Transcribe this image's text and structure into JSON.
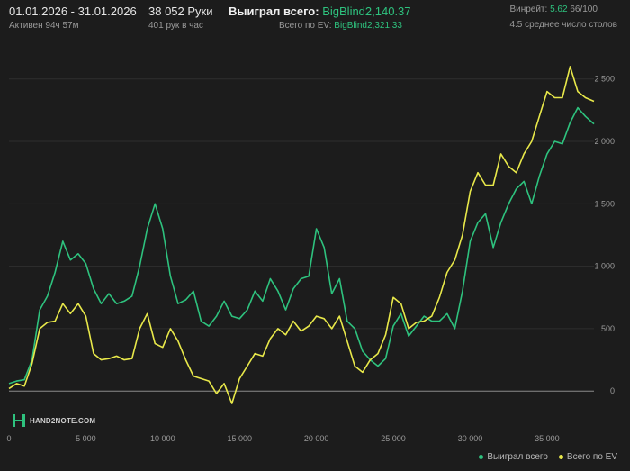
{
  "header": {
    "date_range": "01.01.2026 - 31.01.2026",
    "active_time": "Активен 94ч 57м",
    "hands": "38 052 Руки",
    "hands_per_hour": "401 рук в час",
    "won_label": "Выиграл всего:",
    "won_value": "BigBlind2,140.37",
    "ev_label": "Всего по EV:",
    "ev_value": "BigBlind2,321.33",
    "winrate_label": "Винрейт:",
    "winrate_value": "5.62",
    "winrate_suffix": "66/100",
    "avg_tables": "4.5 среднее число столов"
  },
  "logo": {
    "text": "HAND2NOTE.COM"
  },
  "colors": {
    "won": "#2ec27e",
    "ev": "#e8e84a",
    "background": "#1c1c1c",
    "grid": "#2e2e2e"
  },
  "chart_data": {
    "type": "line",
    "xlim": [
      0,
      38052
    ],
    "ylim": [
      -150,
      2700
    ],
    "x_ticks": [
      0,
      5000,
      10000,
      15000,
      20000,
      25000,
      30000,
      35000
    ],
    "x_tick_labels": [
      "0",
      "5 000",
      "10 000",
      "15 000",
      "20 000",
      "25 000",
      "30 000",
      "35 000"
    ],
    "y_ticks": [
      0,
      500,
      1000,
      1500,
      2000,
      2500
    ],
    "y_tick_labels": [
      "0",
      "500",
      "1 000",
      "1 500",
      "2 000",
      "2 500"
    ],
    "grid": true,
    "legend_position": "bottom-right",
    "series": [
      {
        "name": "Выиграл всего",
        "color": "#2ec27e",
        "x": [
          0,
          500,
          1000,
          1500,
          2000,
          2500,
          3000,
          3500,
          4000,
          4500,
          5000,
          5500,
          6000,
          6500,
          7000,
          7500,
          8000,
          8500,
          9000,
          9500,
          10000,
          10500,
          11000,
          11500,
          12000,
          12500,
          13000,
          13500,
          14000,
          14500,
          15000,
          15500,
          16000,
          16500,
          17000,
          17500,
          18000,
          18500,
          19000,
          19500,
          20000,
          20500,
          21000,
          21500,
          22000,
          22500,
          23000,
          23500,
          24000,
          24500,
          25000,
          25500,
          26000,
          26500,
          27000,
          27500,
          28000,
          28500,
          29000,
          29500,
          30000,
          30500,
          31000,
          31500,
          32000,
          32500,
          33000,
          33500,
          34000,
          34500,
          35000,
          35500,
          36000,
          36500,
          37000,
          37500,
          38052
        ],
        "values": [
          60,
          80,
          90,
          250,
          650,
          760,
          950,
          1200,
          1050,
          1100,
          1020,
          820,
          700,
          780,
          700,
          720,
          760,
          1000,
          1300,
          1500,
          1300,
          920,
          700,
          730,
          800,
          560,
          520,
          600,
          720,
          600,
          580,
          650,
          800,
          720,
          900,
          800,
          650,
          820,
          900,
          920,
          1300,
          1150,
          780,
          900,
          560,
          500,
          320,
          250,
          200,
          260,
          520,
          620,
          440,
          520,
          600,
          560,
          560,
          620,
          500,
          800,
          1200,
          1350,
          1420,
          1150,
          1350,
          1500,
          1620,
          1680,
          1500,
          1720,
          1900,
          2000,
          1980,
          2150,
          2270,
          2200,
          2140
        ]
      },
      {
        "name": "Всего по EV",
        "color": "#e8e84a",
        "x": [
          0,
          500,
          1000,
          1500,
          2000,
          2500,
          3000,
          3500,
          4000,
          4500,
          5000,
          5500,
          6000,
          6500,
          7000,
          7500,
          8000,
          8500,
          9000,
          9500,
          10000,
          10500,
          11000,
          11500,
          12000,
          12500,
          13000,
          13500,
          14000,
          14500,
          15000,
          15500,
          16000,
          16500,
          17000,
          17500,
          18000,
          18500,
          19000,
          19500,
          20000,
          20500,
          21000,
          21500,
          22000,
          22500,
          23000,
          23500,
          24000,
          24500,
          25000,
          25500,
          26000,
          26500,
          27000,
          27500,
          28000,
          28500,
          29000,
          29500,
          30000,
          30500,
          31000,
          31500,
          32000,
          32500,
          33000,
          33500,
          34000,
          34500,
          35000,
          35500,
          36000,
          36500,
          37000,
          37500,
          38052
        ],
        "values": [
          20,
          60,
          40,
          220,
          500,
          550,
          560,
          700,
          620,
          700,
          600,
          300,
          250,
          260,
          280,
          250,
          260,
          500,
          620,
          380,
          350,
          500,
          400,
          250,
          120,
          100,
          80,
          -20,
          60,
          -100,
          100,
          200,
          300,
          280,
          420,
          500,
          450,
          560,
          480,
          520,
          600,
          580,
          500,
          600,
          400,
          200,
          150,
          250,
          300,
          450,
          750,
          700,
          500,
          550,
          560,
          600,
          750,
          950,
          1050,
          1250,
          1600,
          1750,
          1650,
          1650,
          1900,
          1800,
          1750,
          1900,
          2000,
          2200,
          2400,
          2350,
          2350,
          2600,
          2400,
          2350,
          2321
        ]
      }
    ]
  }
}
